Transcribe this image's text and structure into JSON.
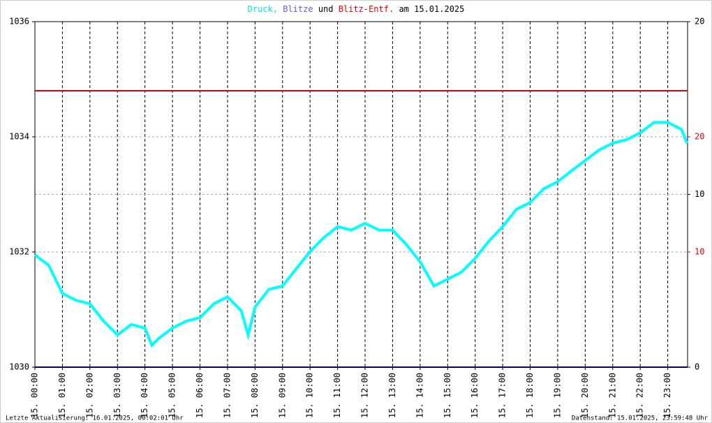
{
  "chart_data": {
    "type": "line",
    "title_parts": [
      {
        "text": "Druck,",
        "color": "#00e5e5"
      },
      {
        "text": "Blitze",
        "color": "#6a5acd"
      },
      {
        "text": "und",
        "color": "#000000"
      },
      {
        "text": "Blitz-Entf.",
        "color": "#e00000"
      },
      {
        "text": "am 15.01.2025",
        "color": "#000000"
      }
    ],
    "xlim": [
      0,
      23.72
    ],
    "xticks": [
      {
        "value": 0,
        "label": "15. 00:00"
      },
      {
        "value": 1,
        "label": "15. 01:00"
      },
      {
        "value": 2,
        "label": "15. 02:00"
      },
      {
        "value": 3,
        "label": "15. 03:00"
      },
      {
        "value": 4,
        "label": "15. 04:00"
      },
      {
        "value": 5,
        "label": "15. 05:00"
      },
      {
        "value": 6,
        "label": "15. 06:00"
      },
      {
        "value": 7,
        "label": "15. 07:00"
      },
      {
        "value": 8,
        "label": "15. 08:00"
      },
      {
        "value": 9,
        "label": "15. 09:00"
      },
      {
        "value": 10,
        "label": "15. 10:00"
      },
      {
        "value": 11,
        "label": "15. 11:00"
      },
      {
        "value": 12,
        "label": "15. 12:00"
      },
      {
        "value": 13,
        "label": "15. 13:00"
      },
      {
        "value": 14,
        "label": "15. 14:00"
      },
      {
        "value": 15,
        "label": "15. 15:00"
      },
      {
        "value": 16,
        "label": "15. 16:00"
      },
      {
        "value": 17,
        "label": "15. 17:00"
      },
      {
        "value": 18,
        "label": "15. 18:00"
      },
      {
        "value": 19,
        "label": "15. 19:00"
      },
      {
        "value": 20,
        "label": "15. 20:00"
      },
      {
        "value": 21,
        "label": "15. 21:00"
      },
      {
        "value": 22,
        "label": "15. 22:00"
      },
      {
        "value": 23,
        "label": "15. 23:00"
      }
    ],
    "ylim": [
      1030,
      1036
    ],
    "yticks": [
      1030,
      1032,
      1034,
      1036
    ],
    "y2lim": [
      0,
      20
    ],
    "y2ticks": [
      0,
      10,
      20
    ],
    "y2color": "#000000",
    "y3lim": [
      0,
      30
    ],
    "y3ticks": [
      10,
      20
    ],
    "y3color": "#e00000",
    "grid": true,
    "series": [
      {
        "name": "Druck",
        "color": "#00ffff",
        "axis": "y",
        "x": [
          0,
          0.5,
          1,
          1.5,
          2,
          2.5,
          3,
          3.5,
          4,
          4.25,
          4.5,
          5,
          5.5,
          6,
          6.5,
          7,
          7.5,
          7.75,
          8,
          8.5,
          9,
          9.5,
          10,
          10.5,
          11,
          11.5,
          12,
          12.5,
          13,
          13.5,
          14,
          14.5,
          15,
          15.5,
          16,
          16.5,
          17,
          17.5,
          18,
          18.5,
          19,
          19.5,
          20,
          20.5,
          21,
          21.5,
          22,
          22.5,
          23,
          23.5,
          23.7
        ],
        "values": [
          1031.95,
          1031.77,
          1031.28,
          1031.16,
          1031.1,
          1030.8,
          1030.56,
          1030.74,
          1030.68,
          1030.38,
          1030.5,
          1030.68,
          1030.8,
          1030.86,
          1031.1,
          1031.22,
          1030.98,
          1030.56,
          1031.04,
          1031.35,
          1031.41,
          1031.71,
          1032.01,
          1032.25,
          1032.44,
          1032.38,
          1032.5,
          1032.38,
          1032.38,
          1032.13,
          1031.83,
          1031.41,
          1031.53,
          1031.65,
          1031.89,
          1032.19,
          1032.44,
          1032.74,
          1032.86,
          1033.1,
          1033.22,
          1033.41,
          1033.59,
          1033.77,
          1033.89,
          1033.95,
          1034.07,
          1034.25,
          1034.25,
          1034.13,
          1033.89
        ]
      },
      {
        "name": "Blitze",
        "color": "#000080",
        "axis": "y2",
        "x": [
          0,
          23.72
        ],
        "values": [
          0,
          0
        ]
      },
      {
        "name": "Blitz-Entf.",
        "color": "#e00000",
        "axis": "y3",
        "x": [
          0,
          23.72
        ],
        "values": [
          24,
          24
        ]
      }
    ],
    "footer_left": "Letzte Aktualisierung: 16.01.2025, 00:02:01 Uhr",
    "footer_right": "Datenstand: 15.01.2025, 23:59:48 Uhr"
  }
}
